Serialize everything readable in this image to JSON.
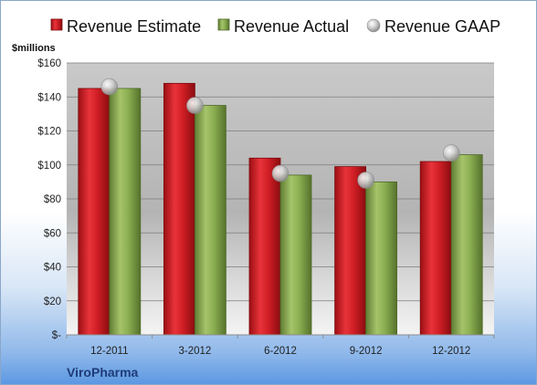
{
  "chart_data": {
    "type": "bar",
    "categories": [
      "12-2011",
      "3-2012",
      "6-2012",
      "9-2012",
      "12-2012"
    ],
    "series": [
      {
        "name": "Revenue Estimate",
        "values": [
          145,
          148,
          104,
          99,
          102
        ]
      },
      {
        "name": "Revenue Actual",
        "values": [
          145,
          135,
          94,
          90,
          106
        ]
      },
      {
        "name": "Revenue GAAP",
        "values": [
          146,
          135,
          95,
          91,
          107
        ],
        "marker": "sphere"
      }
    ],
    "ylabel": "$millions",
    "ylim": [
      0,
      160
    ],
    "yticks": [
      0,
      20,
      40,
      60,
      80,
      100,
      120,
      140,
      160
    ],
    "ytick_labels": [
      "$-",
      "$20",
      "$40",
      "$60",
      "$80",
      "$100",
      "$120",
      "$140",
      "$160"
    ],
    "grid": true,
    "legend_position": "top",
    "company": "ViroPharma",
    "colors": {
      "estimate": "#c8191e",
      "actual": "#7fa04a",
      "gaap": "#bcbcbc",
      "plot_top": "#d4d4d4",
      "plot_bottom": "#f2f2f2",
      "company_text": "#1f3c78"
    }
  }
}
